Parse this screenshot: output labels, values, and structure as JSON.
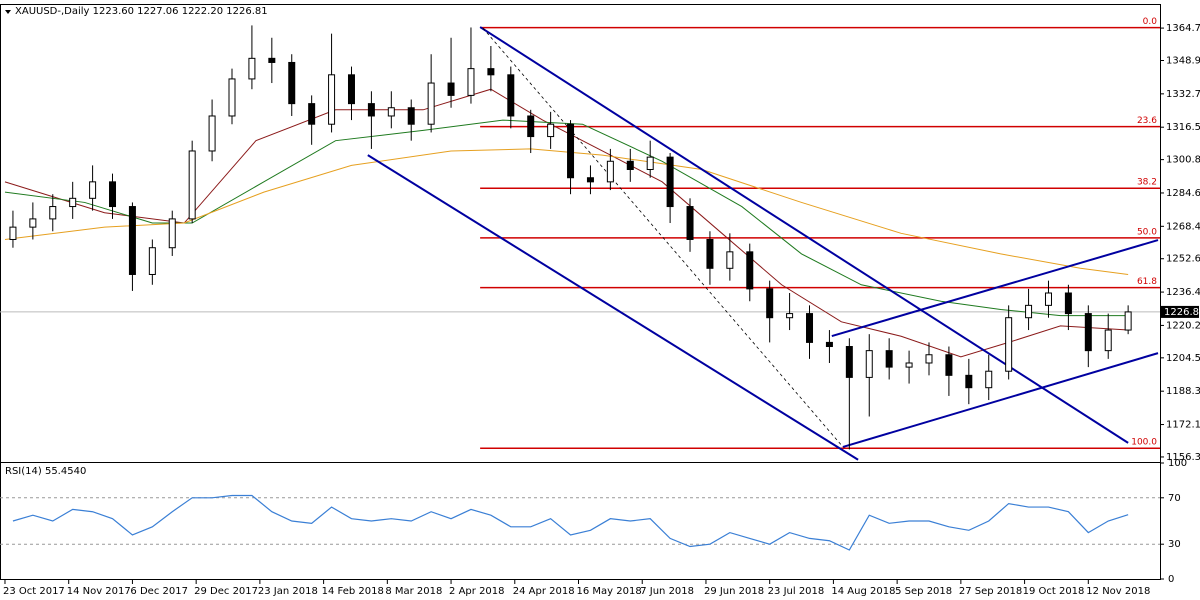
{
  "chart_data": [
    {
      "type": "candlestick",
      "title": "XAUUSD-,Daily  1223.60 1227.06 1222.20 1226.81",
      "x": [
        2,
        7,
        12,
        17,
        22,
        27,
        32,
        37,
        42,
        47,
        52,
        57,
        62,
        67,
        72,
        77,
        82,
        87,
        92,
        97,
        102,
        107,
        112,
        117,
        122,
        127,
        132,
        137,
        142,
        147,
        152,
        157,
        162,
        167,
        172,
        177,
        182,
        187,
        192,
        197,
        202,
        207,
        212,
        217,
        222,
        227,
        232,
        237,
        242,
        247,
        252,
        257,
        262,
        267,
        272,
        277,
        282
      ],
      "open": [
        1262,
        1268,
        1272,
        1278,
        1282,
        1290,
        1278,
        1245,
        1258,
        1272,
        1305,
        1322,
        1340,
        1350,
        1348,
        1328,
        1318,
        1342,
        1328,
        1322,
        1326,
        1318,
        1338,
        1332,
        1345,
        1342,
        1322,
        1312,
        1318,
        1292,
        1290,
        1300,
        1296,
        1302,
        1278,
        1262,
        1248,
        1256,
        1238,
        1224,
        1226,
        1212,
        1210,
        1195,
        1208,
        1200,
        1202,
        1206,
        1196,
        1190,
        1198,
        1224,
        1230,
        1236,
        1226,
        1208,
        1218
      ],
      "high": [
        1276,
        1280,
        1284,
        1290,
        1298,
        1294,
        1280,
        1262,
        1276,
        1310,
        1330,
        1345,
        1366,
        1360,
        1352,
        1332,
        1362,
        1346,
        1334,
        1334,
        1330,
        1352,
        1360,
        1365,
        1356,
        1346,
        1325,
        1324,
        1320,
        1298,
        1306,
        1306,
        1310,
        1304,
        1282,
        1266,
        1265,
        1260,
        1242,
        1236,
        1230,
        1218,
        1214,
        1216,
        1214,
        1208,
        1212,
        1210,
        1204,
        1206,
        1230,
        1238,
        1242,
        1240,
        1230,
        1226,
        1230
      ],
      "low": [
        1258,
        1262,
        1266,
        1272,
        1276,
        1272,
        1237,
        1240,
        1254,
        1270,
        1300,
        1318,
        1335,
        1338,
        1322,
        1308,
        1314,
        1320,
        1306,
        1316,
        1310,
        1314,
        1326,
        1328,
        1334,
        1316,
        1304,
        1306,
        1284,
        1284,
        1286,
        1290,
        1292,
        1270,
        1256,
        1240,
        1242,
        1232,
        1212,
        1218,
        1204,
        1202,
        1160,
        1176,
        1194,
        1192,
        1196,
        1186,
        1182,
        1184,
        1194,
        1218,
        1224,
        1218,
        1200,
        1204,
        1216
      ],
      "close": [
        1268,
        1272,
        1278,
        1282,
        1290,
        1278,
        1245,
        1258,
        1272,
        1305,
        1322,
        1340,
        1350,
        1348,
        1328,
        1318,
        1342,
        1328,
        1322,
        1326,
        1318,
        1338,
        1332,
        1345,
        1342,
        1322,
        1312,
        1318,
        1292,
        1290,
        1300,
        1296,
        1302,
        1278,
        1262,
        1248,
        1256,
        1238,
        1224,
        1226,
        1212,
        1210,
        1195,
        1208,
        1200,
        1202,
        1206,
        1196,
        1190,
        1198,
        1224,
        1230,
        1236,
        1226,
        1208,
        1218,
        1226.81
      ],
      "up_color": "#ffffff",
      "down_color": "#000000",
      "series": [
        {
          "color": "#8b1a1a",
          "x": [
            0,
            25,
            45,
            63,
            83,
            105,
            122,
            135,
            150,
            165,
            180,
            195,
            210,
            225,
            240,
            252,
            265,
            282
          ],
          "values": [
            1290,
            1275,
            1270,
            1310,
            1325,
            1325,
            1335,
            1320,
            1305,
            1290,
            1265,
            1240,
            1222,
            1215,
            1205,
            1212,
            1220,
            1218
          ]
        },
        {
          "color": "#1f7a1f",
          "x": [
            0,
            20,
            37,
            47,
            65,
            83,
            105,
            125,
            145,
            165,
            185,
            200,
            215,
            235,
            250,
            265,
            282
          ],
          "values": [
            1285,
            1280,
            1270,
            1270,
            1290,
            1310,
            1315,
            1320,
            1318,
            1300,
            1278,
            1255,
            1240,
            1232,
            1228,
            1225,
            1225
          ]
        },
        {
          "color": "#e6a020",
          "x": [
            0,
            25,
            45,
            65,
            87,
            112,
            132,
            150,
            175,
            200,
            225,
            250,
            270,
            282
          ],
          "values": [
            1262,
            1268,
            1270,
            1285,
            1298,
            1305,
            1306,
            1303,
            1296,
            1280,
            1265,
            1255,
            1248,
            1245
          ]
        }
      ],
      "fib_color": "#d00000",
      "fib_x_start": 119.3,
      "fib_levels": [
        {
          "value": 1364.9,
          "label": "0.0"
        },
        {
          "value": 1316.8,
          "label": "23.6"
        },
        {
          "value": 1286.9,
          "label": "38.2"
        },
        {
          "value": 1262.8,
          "label": "50.0"
        },
        {
          "value": 1238.6,
          "label": "61.8"
        },
        {
          "value": 1160.6,
          "label": "100.0"
        }
      ],
      "trendlines": [
        {
          "color": "#0000a0",
          "dashed": false,
          "x": [
            119.3,
            282
          ],
          "y": [
            1365.2,
            1163.2
          ]
        },
        {
          "color": "#0000a0",
          "dashed": false,
          "x": [
            91.1,
            214.2
          ],
          "y": [
            1303,
            1155
          ]
        },
        {
          "color": "#000000",
          "dashed": true,
          "x": [
            120,
            210.4
          ],
          "y": [
            1364.7,
            1161.2
          ]
        },
        {
          "color": "#0000a0",
          "dashed": false,
          "x": [
            210.4,
            289.5
          ],
          "y": [
            1161.2,
            1206.8
          ]
        },
        {
          "color": "#0000a0",
          "dashed": false,
          "x": [
            207.6,
            289.5
          ],
          "y": [
            1215.1,
            1261.7
          ]
        }
      ],
      "last_price": 1226.81,
      "xlim": [
        -1.25,
        290
      ],
      "ylim": [
        1153.9,
        1376.4
      ],
      "yticks": [
        {
          "value": 1364.7,
          "label": "1364.70"
        },
        1348.95,
        1332.75,
        1316.55,
        {
          "value": 1300.8,
          "label": "1300.80"
        },
        {
          "value": 1284.6,
          "label": "1284.60"
        },
        {
          "value": 1268.4,
          "label": "1268.40"
        },
        1252.65,
        1236.45,
        1220.25,
        {
          "value": 1204.5,
          "label": "1204.50"
        },
        {
          "value": 1188.3,
          "label": "1188.30"
        },
        {
          "value": 1172.1,
          "label": "1172.10"
        },
        1156.35
      ],
      "xticks": [
        {
          "value": 0,
          "label": "23 Oct 2017"
        },
        {
          "value": 16,
          "label": "14 Nov 2017"
        },
        {
          "value": 32,
          "label": "6 Dec 2017"
        },
        {
          "value": 48,
          "label": "29 Dec 2017"
        },
        {
          "value": 64,
          "label": "23 Jan 2018"
        },
        {
          "value": 80,
          "label": "14 Feb 2018"
        },
        {
          "value": 96,
          "label": "8 Mar 2018"
        },
        {
          "value": 112,
          "label": "2 Apr 2018"
        },
        {
          "value": 128,
          "label": "24 Apr 2018"
        },
        {
          "value": 144,
          "label": "16 May 2018"
        },
        {
          "value": 160,
          "label": "7 Jun 2018"
        },
        {
          "value": 176,
          "label": "29 Jun 2018"
        },
        {
          "value": 192,
          "label": "23 Jul 2018"
        },
        {
          "value": 208,
          "label": "14 Aug 2018"
        },
        {
          "value": 224,
          "label": "5 Sep 2018"
        },
        {
          "value": 240,
          "label": "27 Sep 2018"
        },
        {
          "value": 256,
          "label": "19 Oct 2018"
        },
        {
          "value": 272,
          "label": "12 Nov 2018"
        }
      ]
    },
    {
      "type": "line",
      "title": "RSI(14) 55.4540",
      "color": "#3a7fd5",
      "values": [
        50,
        55,
        50,
        60,
        58,
        52,
        38,
        45,
        58,
        70,
        70,
        72,
        72,
        58,
        50,
        48,
        62,
        52,
        50,
        52,
        50,
        58,
        52,
        60,
        55,
        45,
        45,
        52,
        38,
        42,
        52,
        50,
        52,
        35,
        28,
        30,
        40,
        35,
        30,
        40,
        35,
        33,
        25,
        55,
        48,
        50,
        50,
        45,
        42,
        50,
        65,
        62,
        62,
        58,
        40,
        50,
        55.454
      ],
      "ylim": [
        0,
        100
      ],
      "yticks": [
        0,
        30,
        70,
        100
      ]
    }
  ]
}
